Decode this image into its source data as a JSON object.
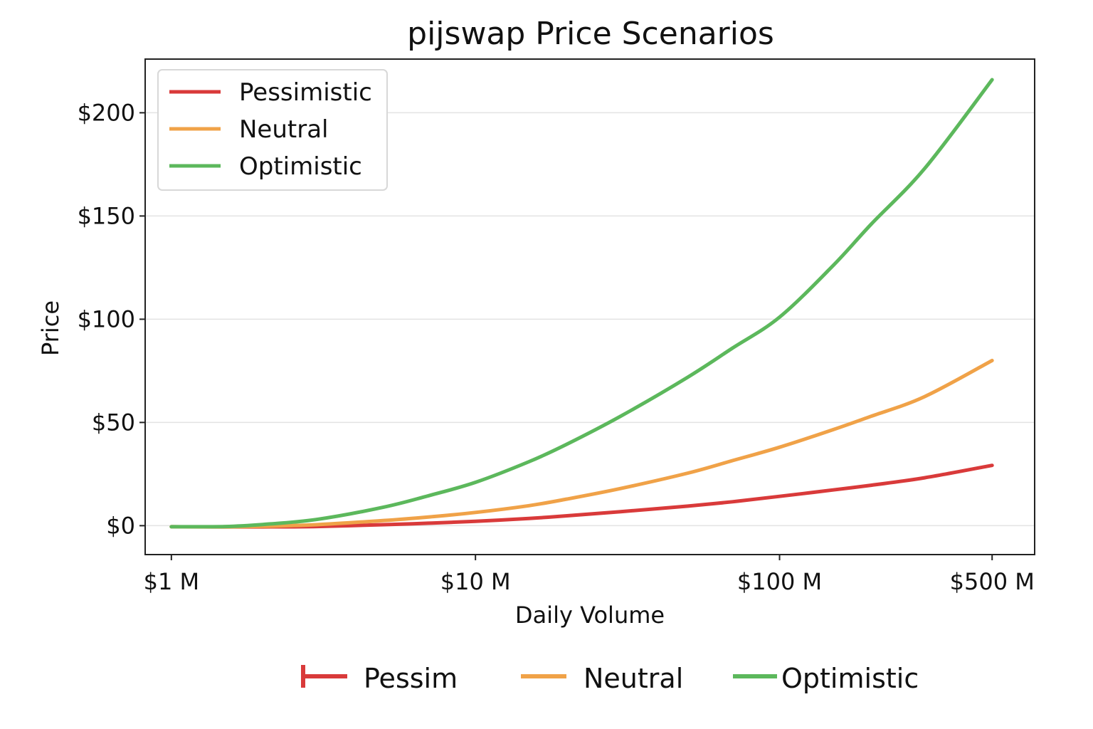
{
  "chart_data": {
    "type": "line",
    "title": "pijswap Price Scenarios",
    "xlabel": "Daily Volume",
    "ylabel": "Price",
    "xscale": "log",
    "x_unit": "USD millions",
    "xlim": [
      0.82,
      690
    ],
    "ylim": [
      -14,
      226
    ],
    "x_ticks": [
      {
        "value": 1,
        "label": "$1 M"
      },
      {
        "value": 10,
        "label": "$10 M"
      },
      {
        "value": 100,
        "label": "$100 M"
      },
      {
        "value": 500,
        "label": "$500 M"
      }
    ],
    "y_ticks": [
      {
        "value": 0,
        "label": "$0"
      },
      {
        "value": 50,
        "label": "$50"
      },
      {
        "value": 100,
        "label": "$100"
      },
      {
        "value": 150,
        "label": "$150"
      },
      {
        "value": 200,
        "label": "$200"
      }
    ],
    "grid": "horizontal",
    "legend_position": "top-left",
    "series": [
      {
        "name": "Pessimistic",
        "color": "#d93a3a",
        "x": [
          1,
          1.5,
          2,
          3,
          5,
          7,
          10,
          15,
          20,
          30,
          50,
          70,
          100,
          150,
          200,
          300,
          500
        ],
        "y": [
          -0.5,
          -0.6,
          -0.6,
          -0.4,
          0.5,
          1.2,
          2.1,
          3.5,
          4.8,
          6.8,
          9.5,
          11.6,
          14.2,
          17.3,
          19.6,
          23.2,
          29.2
        ]
      },
      {
        "name": "Neutral",
        "color": "#f0a248",
        "x": [
          1,
          1.5,
          2,
          3,
          5,
          7,
          10,
          15,
          20,
          30,
          50,
          70,
          100,
          150,
          200,
          300,
          500
        ],
        "y": [
          -0.5,
          -0.6,
          -0.3,
          0.5,
          2.5,
          4.2,
          6.4,
          9.7,
          12.9,
          18.0,
          25.5,
          31.5,
          38.0,
          46.5,
          53.0,
          62.5,
          80.0
        ]
      },
      {
        "name": "Optimistic",
        "color": "#5cb85c",
        "x": [
          1,
          1.5,
          2,
          3,
          5,
          7,
          10,
          15,
          20,
          30,
          50,
          70,
          100,
          150,
          200,
          300,
          500
        ],
        "y": [
          -0.5,
          -0.4,
          0.6,
          3.0,
          9.0,
          14.5,
          21.0,
          31.0,
          39.5,
          53.0,
          72.0,
          86.0,
          101.0,
          126.0,
          146.0,
          173.0,
          216.0
        ]
      }
    ],
    "bottom_legend": [
      {
        "label": "Pessim",
        "color": "#d93a3a",
        "marker": "bar-cap"
      },
      {
        "label": "Neutral",
        "color": "#f0a248",
        "marker": "line"
      },
      {
        "label": "Optimistic",
        "color": "#5cb85c",
        "marker": "line"
      }
    ]
  }
}
